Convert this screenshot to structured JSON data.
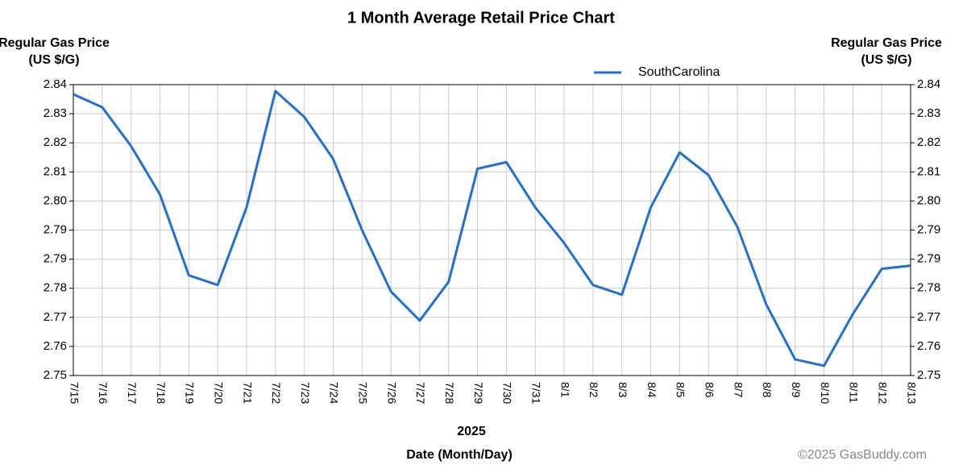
{
  "chart_data": {
    "type": "line",
    "title": "1 Month Average Retail Price Chart",
    "ylabel": "Regular Gas Price (US $/G)",
    "y2label": "Regular Gas Price (US $/G)",
    "xlabel": "Date (Month/Day)",
    "year_label": "2025",
    "credit": "©2025 GasBuddy.com",
    "categories": [
      "7/15",
      "7/16",
      "7/17",
      "7/18",
      "7/19",
      "7/20",
      "7/21",
      "7/22",
      "7/23",
      "7/24",
      "7/25",
      "7/26",
      "7/27",
      "7/28",
      "7/29",
      "7/30",
      "7/31",
      "8/1",
      "8/2",
      "8/3",
      "8/4",
      "8/5",
      "8/6",
      "8/7",
      "8/8",
      "8/9",
      "8/10",
      "8/11",
      "8/12",
      "8/13"
    ],
    "series": [
      {
        "name": "SouthCarolina",
        "color": "#1f6fd6",
        "values": [
          2.837,
          2.833,
          2.821,
          2.806,
          2.781,
          2.778,
          2.802,
          2.838,
          2.83,
          2.817,
          2.795,
          2.776,
          2.767,
          2.779,
          2.814,
          2.816,
          2.802,
          2.791,
          2.778,
          2.775,
          2.802,
          2.819,
          2.812,
          2.796,
          2.772,
          2.755,
          2.753,
          2.769,
          2.783,
          2.784
        ]
      }
    ],
    "ylim": [
      2.75,
      2.84
    ],
    "yticks": [
      2.75,
      {
        "value": 2.759,
        "label": "2.76"
      },
      {
        "value": 2.768,
        "label": "2.77"
      },
      {
        "value": 2.777,
        "label": "2.78"
      },
      {
        "value": 2.786,
        "label": "2.79"
      },
      {
        "value": 2.795,
        "label": "2.79"
      },
      {
        "value": 2.804,
        "label": "2.80"
      },
      {
        "value": 2.813,
        "label": "2.81"
      },
      {
        "value": 2.822,
        "label": "2.82"
      },
      {
        "value": 2.831,
        "label": "2.83"
      },
      2.84
    ],
    "y2lim": [
      2.75,
      2.84
    ],
    "y2ticks": [
      2.75,
      {
        "value": 2.759,
        "label": "2.76"
      },
      {
        "value": 2.768,
        "label": "2.77"
      },
      {
        "value": 2.777,
        "label": "2.78"
      },
      {
        "value": 2.786,
        "label": "2.79"
      },
      {
        "value": 2.795,
        "label": "2.79"
      },
      {
        "value": 2.804,
        "label": "2.80"
      },
      {
        "value": 2.813,
        "label": "2.81"
      },
      {
        "value": 2.822,
        "label": "2.82"
      },
      {
        "value": 2.831,
        "label": "2.83"
      },
      2.84
    ],
    "grid": true,
    "legend": "top"
  }
}
